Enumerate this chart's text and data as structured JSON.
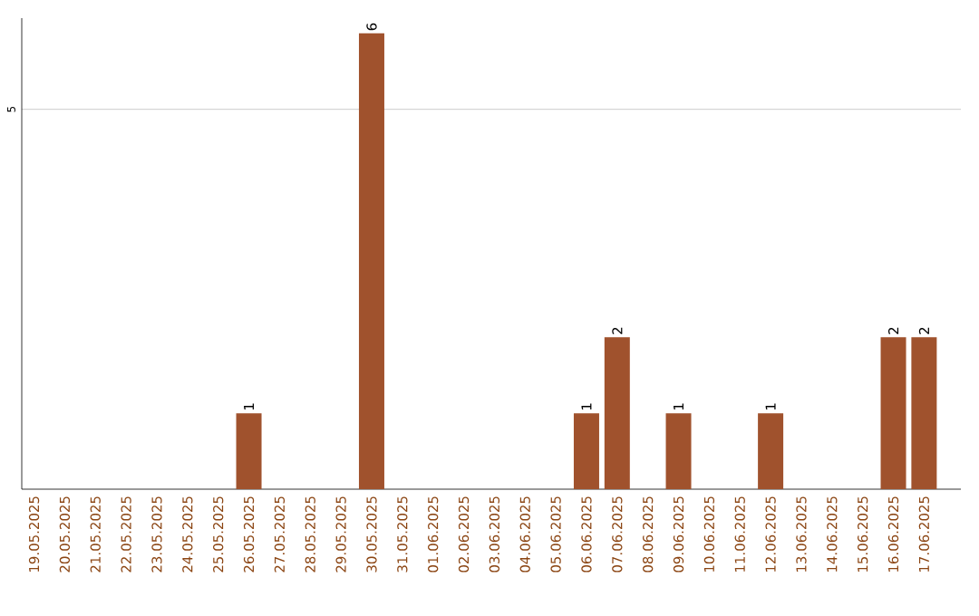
{
  "chart_data": {
    "type": "bar",
    "categories": [
      "19.05.2025",
      "20.05.2025",
      "21.05.2025",
      "22.05.2025",
      "23.05.2025",
      "24.05.2025",
      "25.05.2025",
      "26.05.2025",
      "27.05.2025",
      "28.05.2025",
      "29.05.2025",
      "30.05.2025",
      "31.05.2025",
      "01.06.2025",
      "02.06.2025",
      "03.06.2025",
      "04.06.2025",
      "05.06.2025",
      "06.06.2025",
      "07.06.2025",
      "08.06.2025",
      "09.06.2025",
      "10.06.2025",
      "11.06.2025",
      "12.06.2025",
      "13.06.2025",
      "14.06.2025",
      "15.06.2025",
      "16.06.2025",
      "17.06.2025"
    ],
    "values": [
      0,
      0,
      0,
      0,
      0,
      0,
      0,
      1,
      0,
      0,
      0,
      6,
      0,
      0,
      0,
      0,
      0,
      0,
      1,
      2,
      0,
      1,
      0,
      0,
      1,
      0,
      0,
      0,
      2,
      2
    ],
    "value_labels": [
      null,
      null,
      null,
      null,
      null,
      null,
      null,
      "1",
      null,
      null,
      null,
      "6",
      null,
      null,
      null,
      null,
      null,
      null,
      "1",
      "2",
      null,
      "1",
      null,
      null,
      "1",
      null,
      null,
      null,
      "2",
      "2"
    ],
    "color": "#a0522d",
    "ylim": [
      0,
      6.2
    ],
    "yticks": [
      5
    ],
    "grid": "y"
  }
}
